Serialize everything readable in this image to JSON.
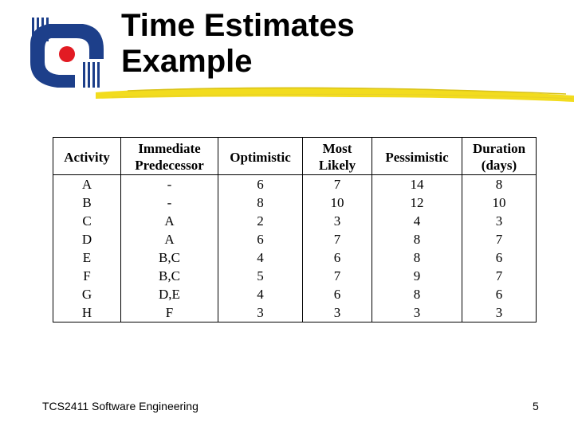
{
  "slide": {
    "title_line1": "Time Estimates",
    "title_line2": "Example",
    "footer": "TCS2411 Software Engineering",
    "page_number": "5"
  },
  "colors": {
    "logo_blue": "#1d3f8a",
    "logo_red": "#e21b23",
    "brush_yellow": "#f2dc1e"
  },
  "table": {
    "headers": [
      [
        "Activity"
      ],
      [
        "Immediate",
        "Predecessor"
      ],
      [
        "Optimistic"
      ],
      [
        "Most",
        "Likely"
      ],
      [
        "Pessimistic"
      ],
      [
        "Duration",
        "(days)"
      ]
    ],
    "rows": [
      [
        "A",
        "-",
        "6",
        "7",
        "14",
        "8"
      ],
      [
        "B",
        "-",
        "8",
        "10",
        "12",
        "10"
      ],
      [
        "C",
        "A",
        "2",
        "3",
        "4",
        "3"
      ],
      [
        "D",
        "A",
        "6",
        "7",
        "8",
        "7"
      ],
      [
        "E",
        "B,C",
        "4",
        "6",
        "8",
        "6"
      ],
      [
        "F",
        "B,C",
        "5",
        "7",
        "9",
        "7"
      ],
      [
        "G",
        "D,E",
        "4",
        "6",
        "8",
        "6"
      ],
      [
        "H",
        "F",
        "3",
        "3",
        "3",
        "3"
      ]
    ]
  }
}
